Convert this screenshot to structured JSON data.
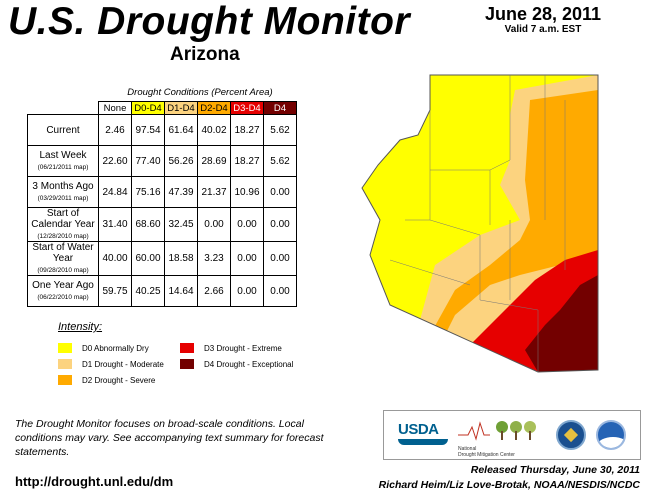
{
  "header": {
    "title": "U.S. Drought Monitor",
    "state": "Arizona",
    "date": "June 28, 2011",
    "valid": "Valid 7 a.m. EST"
  },
  "table": {
    "caption": "Drought Conditions (Percent Area)",
    "columns": [
      "None",
      "D0-D4",
      "D1-D4",
      "D2-D4",
      "D3-D4",
      "D4"
    ],
    "rows": [
      {
        "label": "Current",
        "sub": "",
        "values": [
          "2.46",
          "97.54",
          "61.64",
          "40.02",
          "18.27",
          "5.62"
        ]
      },
      {
        "label": "Last Week",
        "sub": "(06/21/2011 map)",
        "values": [
          "22.60",
          "77.40",
          "56.26",
          "28.69",
          "18.27",
          "5.62"
        ]
      },
      {
        "label": "3 Months Ago",
        "sub": "(03/29/2011 map)",
        "values": [
          "24.84",
          "75.16",
          "47.39",
          "21.37",
          "10.96",
          "0.00"
        ]
      },
      {
        "label": "Start of Calendar Year",
        "sub": "(12/28/2010 map)",
        "values": [
          "31.40",
          "68.60",
          "32.45",
          "0.00",
          "0.00",
          "0.00"
        ]
      },
      {
        "label": "Start of Water Year",
        "sub": "(09/28/2010 map)",
        "values": [
          "40.00",
          "60.00",
          "18.58",
          "3.23",
          "0.00",
          "0.00"
        ]
      },
      {
        "label": "One Year Ago",
        "sub": "(06/22/2010 map)",
        "values": [
          "59.75",
          "40.25",
          "14.64",
          "2.66",
          "0.00",
          "0.00"
        ]
      }
    ]
  },
  "legend": {
    "title": "Intensity:",
    "items": [
      {
        "label": "D0 Abnormally Dry",
        "color": "#ffff00"
      },
      {
        "label": "D1 Drought - Moderate",
        "color": "#fcd37f"
      },
      {
        "label": "D2 Drought - Severe",
        "color": "#ffaa00"
      },
      {
        "label": "D3 Drought - Extreme",
        "color": "#e60000"
      },
      {
        "label": "D4 Drought - Exceptional",
        "color": "#730000"
      }
    ]
  },
  "footer": {
    "note": "The Drought Monitor focuses on broad-scale conditions. Local conditions may vary. See accompanying text summary for forecast statements.",
    "url": "http://drought.unl.edu/dm",
    "released": "Released Thursday, June 30, 2011",
    "authors": "Richard Heim/Liz Love-Brotak, NOAA/NESDIS/NCDC"
  },
  "logos": {
    "usda": "USDA",
    "ndmc_line1": "National",
    "ndmc_line2": "Drought Mitigation Center"
  }
}
